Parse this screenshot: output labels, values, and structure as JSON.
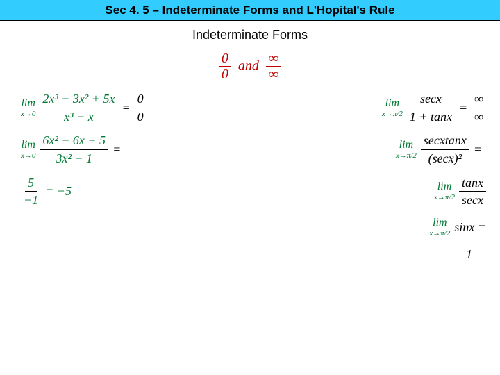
{
  "header": {
    "title": "Sec 4. 5 – Indeterminate Forms and L'Hopital's Rule"
  },
  "subtitle": "Indeterminate Forms",
  "forms": {
    "zero_num": "0",
    "zero_den": "0",
    "and_text": "and",
    "inf_num": "∞",
    "inf_den": "∞"
  },
  "left": {
    "r1": {
      "lim": "lim",
      "sub": "x→0",
      "num": "2x³ − 3x² + 5x",
      "den": "x³ − x",
      "eq": "=",
      "rnum": "0",
      "rden": "0"
    },
    "r2": {
      "lim": "lim",
      "sub": "x→0",
      "num": "6x² − 6x + 5",
      "den": "3x² − 1",
      "eq": "="
    },
    "r3": {
      "num": "5",
      "den": "−1",
      "eq": "= −5"
    }
  },
  "right": {
    "r1": {
      "lim": "lim",
      "sub": "x→π/2",
      "num": "secx",
      "den": "1 + tanx",
      "eq": "=",
      "rnum": "∞",
      "rden": "∞"
    },
    "r2": {
      "lim": "lim",
      "sub": "x→π/2",
      "num": "secxtanx",
      "den": "(secx)²",
      "eq": "="
    },
    "r3": {
      "lim": "lim",
      "sub": "x→π/2",
      "num": "tanx",
      "den": "secx"
    },
    "r4": {
      "lim": "lim",
      "sub": "x→π/2",
      "expr": "sinx =",
      "final": "1"
    }
  }
}
